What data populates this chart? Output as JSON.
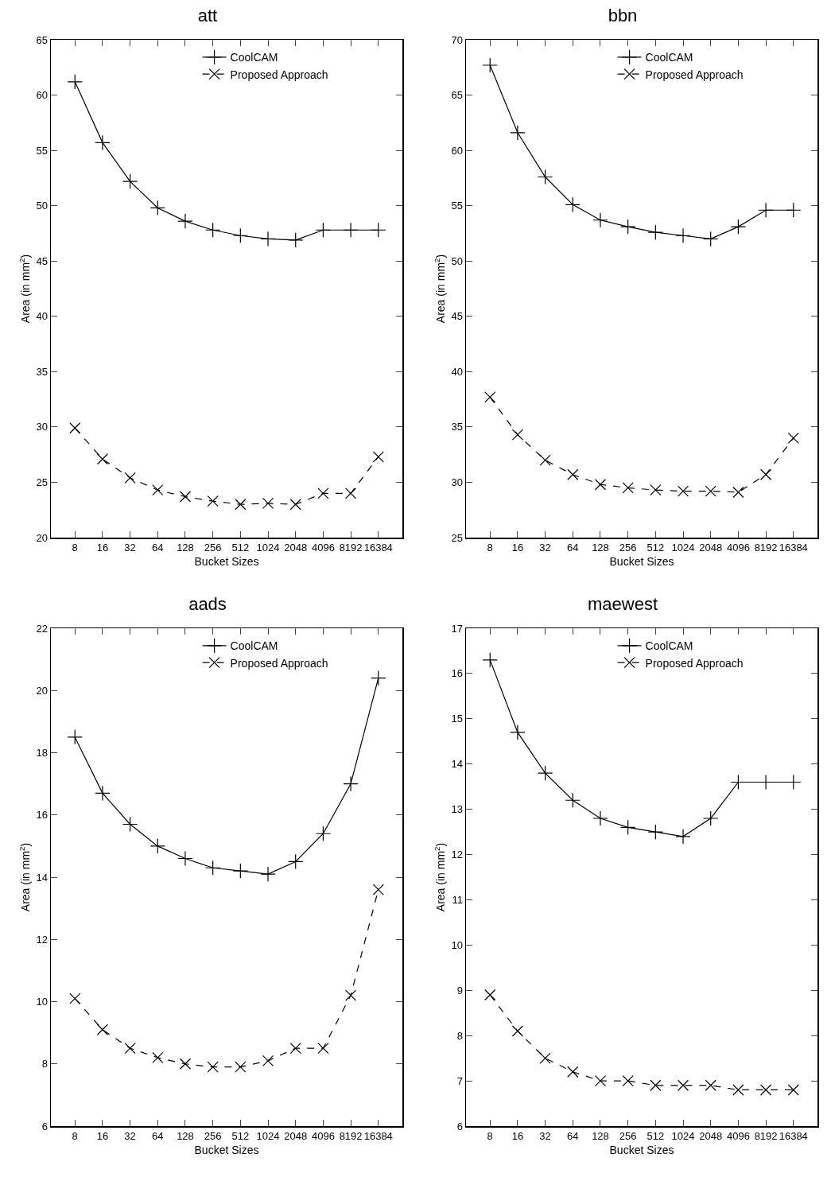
{
  "chart_data": [
    {
      "type": "line",
      "title": "att",
      "xlabel": "Bucket Sizes",
      "ylabel": "Area (in mm$^{2}$)",
      "categories": [
        "8",
        "16",
        "32",
        "64",
        "128",
        "256",
        "512",
        "1024",
        "2048",
        "4096",
        "8192",
        "16384"
      ],
      "ylim": [
        20,
        65
      ],
      "yticks": [
        20,
        25,
        30,
        35,
        40,
        45,
        50,
        55,
        60,
        65
      ],
      "grid": false,
      "legend": "top right",
      "series": [
        {
          "name": "CoolCAM",
          "color": "#000000",
          "marker": "cross",
          "line_style": "solid",
          "values": [
            61.2,
            55.7,
            52.2,
            49.8,
            48.6,
            47.8,
            47.3,
            47.0,
            46.9,
            47.8,
            47.8,
            47.8
          ]
        },
        {
          "name": "Proposed Approach",
          "color": "#000000",
          "marker": "x",
          "line_style": "dashed",
          "values": [
            29.9,
            27.1,
            25.4,
            24.3,
            23.7,
            23.3,
            23.0,
            23.1,
            23.0,
            24.0,
            24.0,
            27.3
          ]
        }
      ]
    },
    {
      "type": "line",
      "title": "bbn",
      "xlabel": "Bucket Sizes",
      "ylabel": "Area (in mm$^{2}$)",
      "categories": [
        "8",
        "16",
        "32",
        "64",
        "128",
        "256",
        "512",
        "1024",
        "2048",
        "4096",
        "8192",
        "16384"
      ],
      "ylim": [
        25,
        70
      ],
      "yticks": [
        25,
        30,
        35,
        40,
        45,
        50,
        55,
        60,
        65,
        70
      ],
      "grid": false,
      "legend": "top right",
      "series": [
        {
          "name": "CoolCAM",
          "color": "#000000",
          "marker": "cross",
          "line_style": "solid",
          "values": [
            67.7,
            61.6,
            57.6,
            55.1,
            53.7,
            53.1,
            52.6,
            52.3,
            52.0,
            53.1,
            54.6,
            54.6
          ]
        },
        {
          "name": "Proposed Approach",
          "color": "#000000",
          "marker": "x",
          "line_style": "dashed",
          "values": [
            37.7,
            34.3,
            32.0,
            30.7,
            29.8,
            29.5,
            29.3,
            29.2,
            29.2,
            29.1,
            30.7,
            34.0
          ]
        }
      ]
    },
    {
      "type": "line",
      "title": "aads",
      "xlabel": "Bucket Sizes",
      "ylabel": "Area (in mm$^{2}$)",
      "categories": [
        "8",
        "16",
        "32",
        "64",
        "128",
        "256",
        "512",
        "1024",
        "2048",
        "4096",
        "8192",
        "16384"
      ],
      "ylim": [
        6,
        22
      ],
      "yticks": [
        6,
        8,
        10,
        12,
        14,
        16,
        18,
        20,
        22
      ],
      "grid": false,
      "legend": "top right",
      "series": [
        {
          "name": "CoolCAM",
          "color": "#000000",
          "marker": "cross",
          "line_style": "solid",
          "values": [
            18.5,
            16.7,
            15.7,
            15.0,
            14.6,
            14.3,
            14.2,
            14.1,
            14.5,
            15.4,
            17.0,
            20.4
          ]
        },
        {
          "name": "Proposed Approach",
          "color": "#000000",
          "marker": "x",
          "line_style": "dashed",
          "values": [
            10.1,
            9.1,
            8.5,
            8.2,
            8.0,
            7.9,
            7.9,
            8.1,
            8.5,
            8.5,
            10.2,
            13.6
          ]
        }
      ]
    },
    {
      "type": "line",
      "title": "maewest",
      "xlabel": "Bucket Sizes",
      "ylabel": "Area (in mm$^{2}$)",
      "categories": [
        "8",
        "16",
        "32",
        "64",
        "128",
        "256",
        "512",
        "1024",
        "2048",
        "4096",
        "8192",
        "16384"
      ],
      "ylim": [
        6,
        17
      ],
      "yticks": [
        6,
        7,
        8,
        9,
        10,
        11,
        12,
        13,
        14,
        15,
        16,
        17
      ],
      "grid": false,
      "legend": "top right",
      "series": [
        {
          "name": "CoolCAM",
          "color": "#000000",
          "marker": "cross",
          "line_style": "solid",
          "values": [
            16.3,
            14.7,
            13.8,
            13.2,
            12.8,
            12.6,
            12.5,
            12.4,
            12.8,
            13.6,
            13.6,
            13.6
          ]
        },
        {
          "name": "Proposed Approach",
          "color": "#000000",
          "marker": "x",
          "line_style": "dashed",
          "values": [
            8.9,
            8.1,
            7.5,
            7.2,
            7.0,
            7.0,
            6.9,
            6.9,
            6.9,
            6.8,
            6.8,
            6.8
          ]
        }
      ]
    }
  ]
}
